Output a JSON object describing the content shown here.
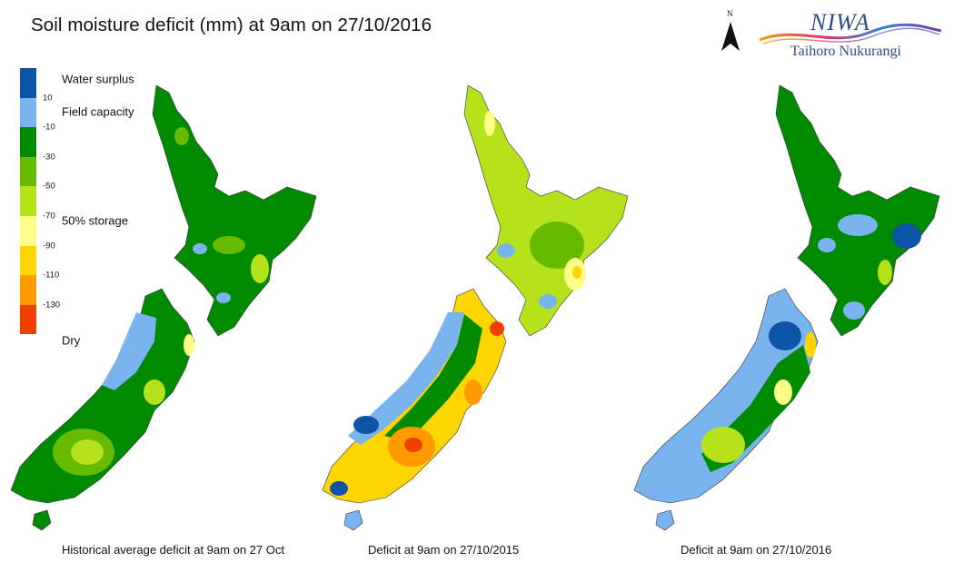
{
  "title": "Soil moisture deficit (mm) at 9am on 27/10/2016",
  "legend": {
    "colors": [
      "#0b54a8",
      "#7ab4ef",
      "#008a00",
      "#66bb00",
      "#b6e21c",
      "#ffff88",
      "#ffd500",
      "#ff9a00",
      "#f04000"
    ],
    "ticks": [
      "10",
      "-10",
      "-30",
      "-50",
      "-70",
      "-90",
      "-110",
      "-130"
    ],
    "labels": {
      "surplus": "Water surplus",
      "field": "Field capacity",
      "storage": "50% storage",
      "dry": "Dry"
    }
  },
  "north_label": "N",
  "logo": {
    "name": "NIWA",
    "subtitle": "Taihoro Nukurangi"
  },
  "maps": [
    {
      "caption": "Historical average deficit at 9am on 27 Oct"
    },
    {
      "caption": "Deficit at  9am on 27/10/2015"
    },
    {
      "caption": "Deficit at  9am on 27/10/2016"
    }
  ]
}
